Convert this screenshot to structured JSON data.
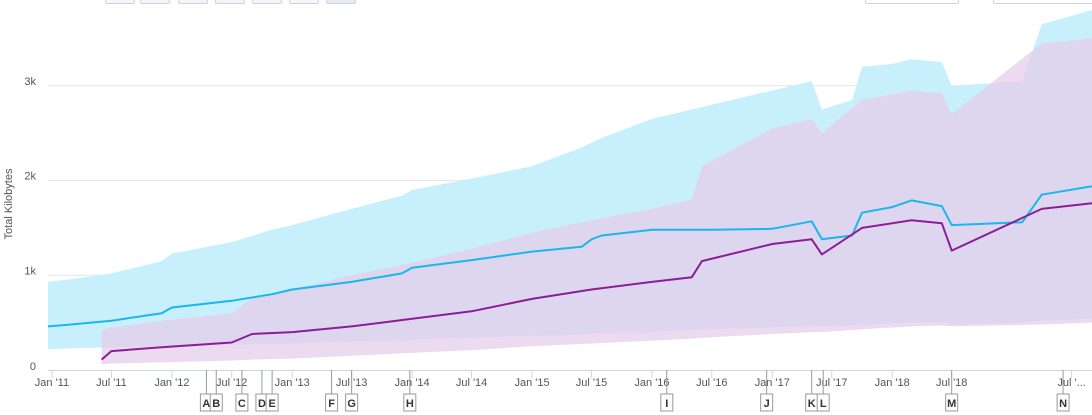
{
  "chart_data": {
    "type": "area",
    "title": "",
    "ylabel": "Total Kilobytes",
    "xlabel": "",
    "x_range": [
      "2010-12-20",
      "2019-09-01"
    ],
    "ylim": [
      0,
      3800
    ],
    "y_ticks": [
      {
        "value": 0,
        "label": "0"
      },
      {
        "value": 1000,
        "label": "1k"
      },
      {
        "value": 2000,
        "label": "2k"
      },
      {
        "value": 3000,
        "label": "3k"
      }
    ],
    "x_ticks": [
      {
        "date": "2011-01-01",
        "label": "Jan '11"
      },
      {
        "date": "2011-07-01",
        "label": "Jul '11"
      },
      {
        "date": "2012-01-01",
        "label": "Jan '12"
      },
      {
        "date": "2012-07-01",
        "label": "Jul '12"
      },
      {
        "date": "2013-01-01",
        "label": "Jan '13"
      },
      {
        "date": "2013-07-01",
        "label": "Jul '13"
      },
      {
        "date": "2014-01-01",
        "label": "Jan '14"
      },
      {
        "date": "2014-07-01",
        "label": "Jul '14"
      },
      {
        "date": "2015-01-01",
        "label": "Jan '15"
      },
      {
        "date": "2015-07-01",
        "label": "Jul '15"
      },
      {
        "date": "2016-01-01",
        "label": "Jan '16"
      },
      {
        "date": "2016-07-01",
        "label": "Jul '16"
      },
      {
        "date": "2017-01-01",
        "label": "Jan '17"
      },
      {
        "date": "2017-07-01",
        "label": "Jul '17"
      },
      {
        "date": "2018-01-01",
        "label": "Jan '18"
      },
      {
        "date": "2018-07-01",
        "label": "Jul '18"
      },
      {
        "date": "2019-07-01",
        "label": "Jul '..."
      }
    ],
    "grid": true,
    "colors": {
      "desktop_line": "#1ab7ea",
      "desktop_band": "#c8f0fc",
      "mobile_line": "#8b1e96",
      "mobile_band": "#e6cdeb",
      "overlap_band": "#cfd3f3",
      "grid": "#e6e6e6",
      "axis": "#ccd6eb",
      "flag_border": "#999999"
    },
    "series": [
      {
        "key": "desktop",
        "color": "#1ab7ea",
        "band_color": "#c8f0fc",
        "points": [
          {
            "x": "2010-12-20",
            "median": 460,
            "low": 220,
            "high": 930
          },
          {
            "x": "2011-03-01",
            "median": 480,
            "low": 230,
            "high": 960
          },
          {
            "x": "2011-07-01",
            "median": 520,
            "low": 240,
            "high": 1020
          },
          {
            "x": "2011-12-01",
            "median": 600,
            "low": 250,
            "high": 1150
          },
          {
            "x": "2012-01-01",
            "median": 660,
            "low": 255,
            "high": 1230
          },
          {
            "x": "2012-07-01",
            "median": 730,
            "low": 265,
            "high": 1350
          },
          {
            "x": "2012-11-01",
            "median": 800,
            "low": 270,
            "high": 1480
          },
          {
            "x": "2013-01-01",
            "median": 850,
            "low": 280,
            "high": 1530
          },
          {
            "x": "2013-07-01",
            "median": 930,
            "low": 300,
            "high": 1700
          },
          {
            "x": "2013-12-01",
            "median": 1020,
            "low": 310,
            "high": 1840
          },
          {
            "x": "2014-01-01",
            "median": 1080,
            "low": 320,
            "high": 1900
          },
          {
            "x": "2014-07-01",
            "median": 1160,
            "low": 340,
            "high": 2020
          },
          {
            "x": "2015-01-01",
            "median": 1250,
            "low": 360,
            "high": 2150
          },
          {
            "x": "2015-06-01",
            "median": 1300,
            "low": 370,
            "high": 2350
          },
          {
            "x": "2015-07-01",
            "median": 1380,
            "low": 380,
            "high": 2400
          },
          {
            "x": "2015-08-01",
            "median": 1420,
            "low": 390,
            "high": 2450
          },
          {
            "x": "2016-01-01",
            "median": 1480,
            "low": 400,
            "high": 2650
          },
          {
            "x": "2016-07-01",
            "median": 1480,
            "low": 430,
            "high": 2800
          },
          {
            "x": "2017-01-01",
            "median": 1490,
            "low": 450,
            "high": 2950
          },
          {
            "x": "2017-05-01",
            "median": 1570,
            "low": 460,
            "high": 3050
          },
          {
            "x": "2017-06-01",
            "median": 1380,
            "low": 460,
            "high": 2750
          },
          {
            "x": "2017-09-01",
            "median": 1420,
            "low": 470,
            "high": 2850
          },
          {
            "x": "2017-10-01",
            "median": 1660,
            "low": 480,
            "high": 3200
          },
          {
            "x": "2018-01-01",
            "median": 1720,
            "low": 490,
            "high": 3230
          },
          {
            "x": "2018-03-01",
            "median": 1790,
            "low": 500,
            "high": 3280
          },
          {
            "x": "2018-06-01",
            "median": 1730,
            "low": 500,
            "high": 3250
          },
          {
            "x": "2018-07-01",
            "median": 1530,
            "low": 480,
            "high": 3000
          },
          {
            "x": "2019-02-01",
            "median": 1560,
            "low": 500,
            "high": 3050
          },
          {
            "x": "2019-04-01",
            "median": 1850,
            "low": 520,
            "high": 3650
          },
          {
            "x": "2019-09-01",
            "median": 1940,
            "low": 540,
            "high": 3800
          }
        ]
      },
      {
        "key": "mobile",
        "color": "#8b1e96",
        "band_color": "#e6cdeb",
        "points": [
          {
            "x": "2011-06-01",
            "median": 110,
            "low": 60,
            "high": 420
          },
          {
            "x": "2011-07-01",
            "median": 200,
            "low": 70,
            "high": 450
          },
          {
            "x": "2011-12-01",
            "median": 240,
            "low": 80,
            "high": 520
          },
          {
            "x": "2012-07-01",
            "median": 290,
            "low": 100,
            "high": 600
          },
          {
            "x": "2012-09-01",
            "median": 380,
            "low": 110,
            "high": 760
          },
          {
            "x": "2013-01-01",
            "median": 400,
            "low": 120,
            "high": 850
          },
          {
            "x": "2013-07-01",
            "median": 460,
            "low": 150,
            "high": 1000
          },
          {
            "x": "2014-01-01",
            "median": 540,
            "low": 180,
            "high": 1130
          },
          {
            "x": "2014-07-01",
            "median": 620,
            "low": 210,
            "high": 1280
          },
          {
            "x": "2015-01-01",
            "median": 750,
            "low": 250,
            "high": 1450
          },
          {
            "x": "2015-07-01",
            "median": 850,
            "low": 280,
            "high": 1580
          },
          {
            "x": "2016-01-01",
            "median": 930,
            "low": 310,
            "high": 1700
          },
          {
            "x": "2016-05-01",
            "median": 980,
            "low": 330,
            "high": 1800
          },
          {
            "x": "2016-06-01",
            "median": 1150,
            "low": 340,
            "high": 2150
          },
          {
            "x": "2017-01-01",
            "median": 1330,
            "low": 380,
            "high": 2550
          },
          {
            "x": "2017-05-01",
            "median": 1380,
            "low": 400,
            "high": 2650
          },
          {
            "x": "2017-06-01",
            "median": 1220,
            "low": 400,
            "high": 2500
          },
          {
            "x": "2017-10-01",
            "median": 1500,
            "low": 430,
            "high": 2850
          },
          {
            "x": "2018-03-01",
            "median": 1580,
            "low": 460,
            "high": 2950
          },
          {
            "x": "2018-06-01",
            "median": 1550,
            "low": 470,
            "high": 2920
          },
          {
            "x": "2018-07-01",
            "median": 1260,
            "low": 460,
            "high": 2700
          },
          {
            "x": "2019-04-01",
            "median": 1700,
            "low": 480,
            "high": 3450
          },
          {
            "x": "2019-09-01",
            "median": 1760,
            "low": 500,
            "high": 3500
          }
        ]
      }
    ],
    "flags": [
      {
        "label": "A",
        "date": "2012-04-15"
      },
      {
        "label": "B",
        "date": "2012-05-15"
      },
      {
        "label": "C",
        "date": "2012-08-01"
      },
      {
        "label": "D",
        "date": "2012-10-01"
      },
      {
        "label": "E",
        "date": "2012-11-01"
      },
      {
        "label": "F",
        "date": "2013-05-01"
      },
      {
        "label": "G",
        "date": "2013-07-01"
      },
      {
        "label": "H",
        "date": "2013-12-25"
      },
      {
        "label": "I",
        "date": "2016-02-15"
      },
      {
        "label": "J",
        "date": "2016-12-15"
      },
      {
        "label": "K",
        "date": "2017-05-01"
      },
      {
        "label": "L",
        "date": "2017-06-05"
      },
      {
        "label": "M",
        "date": "2018-07-01"
      },
      {
        "label": "N",
        "date": "2019-06-05"
      }
    ]
  }
}
